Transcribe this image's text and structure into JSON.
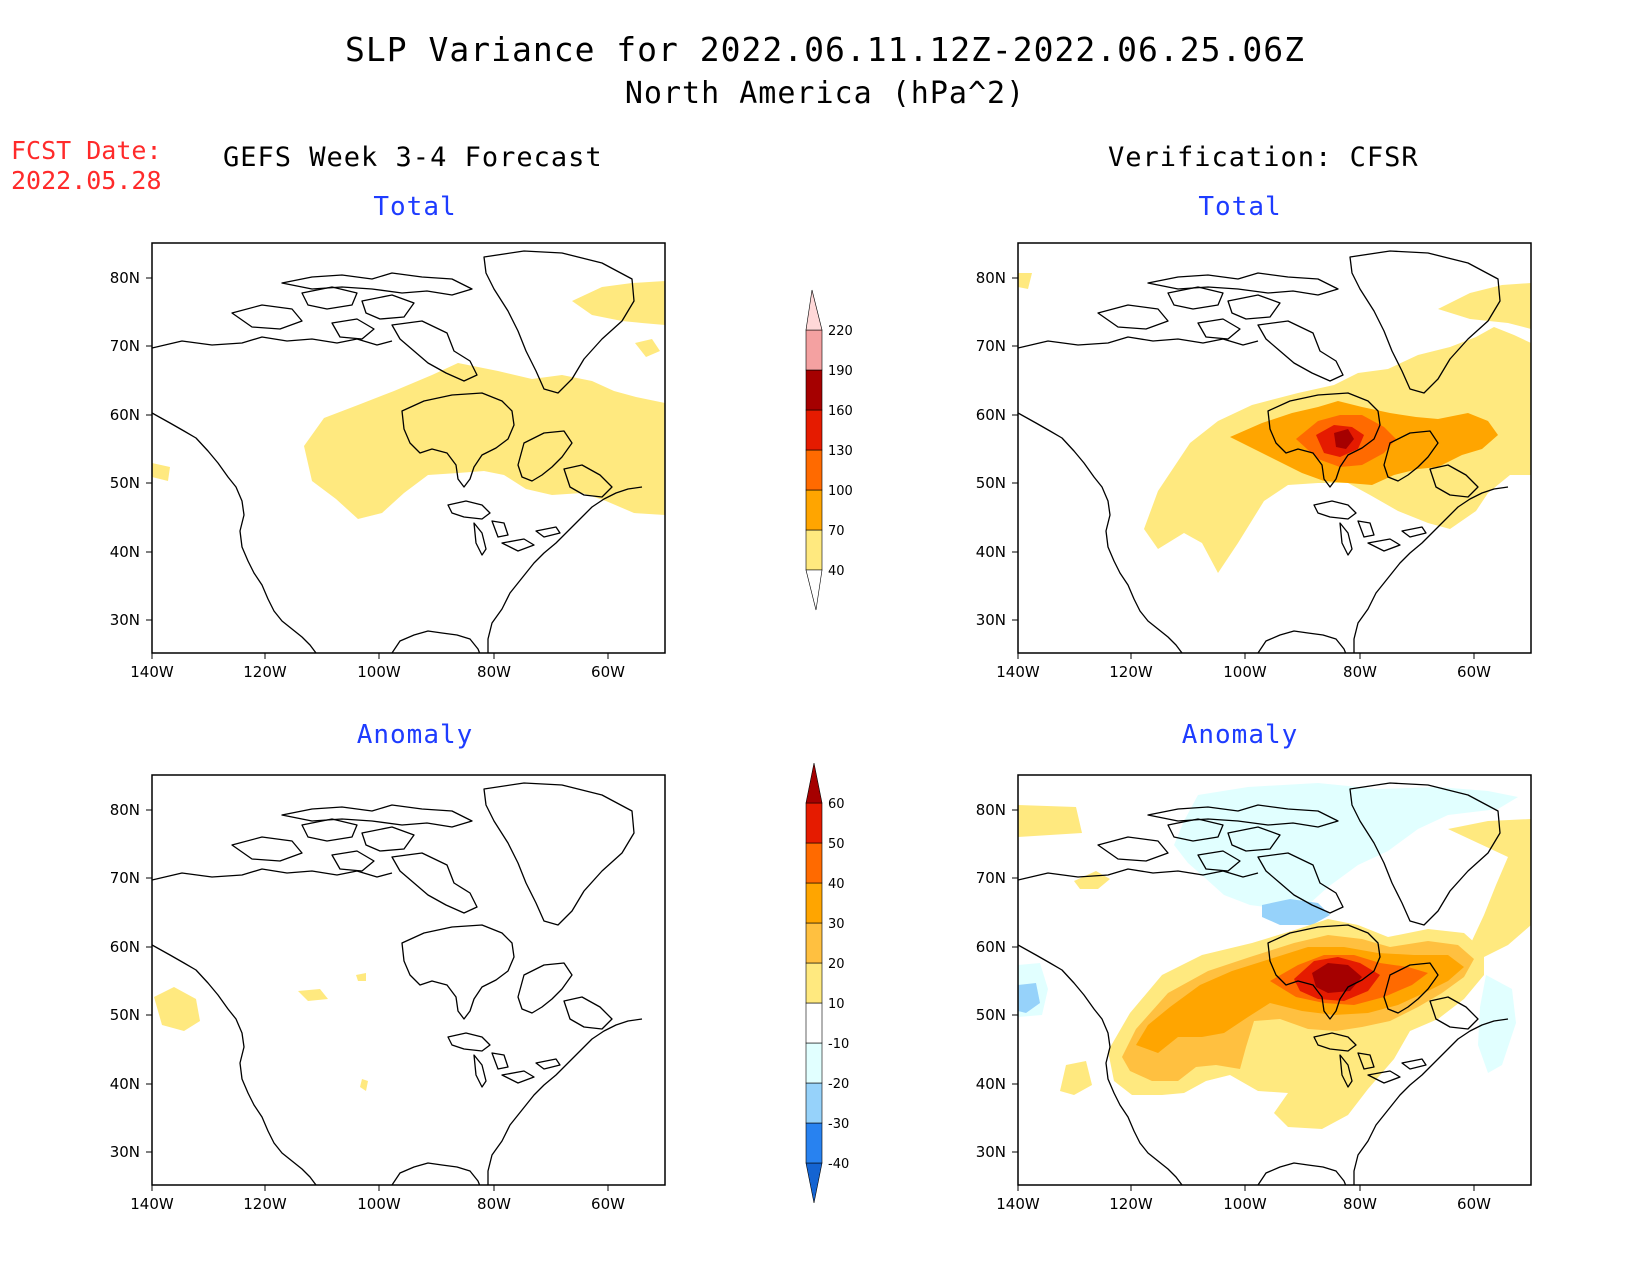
{
  "title": {
    "line1": "SLP Variance for 2022.06.11.12Z-2022.06.25.06Z",
    "line2": "North America (hPa^2)"
  },
  "forecast_date": {
    "label": "FCST Date:",
    "value": "2022.05.28"
  },
  "columns": {
    "left": "GEFS Week 3-4 Forecast",
    "right": "Verification: CFSR"
  },
  "panels": [
    {
      "id": "gefs-total",
      "subtitle": "Total"
    },
    {
      "id": "cfsr-total",
      "subtitle": "Total"
    },
    {
      "id": "gefs-anomaly",
      "subtitle": "Anomaly"
    },
    {
      "id": "cfsr-anomaly",
      "subtitle": "Anomaly"
    }
  ],
  "axes": {
    "lat_labels": [
      "80N",
      "70N",
      "60N",
      "50N",
      "40N",
      "30N"
    ],
    "lon_labels": [
      "140W",
      "120W",
      "100W",
      "80W",
      "60W"
    ]
  },
  "colorbars": {
    "total": {
      "labels": [
        "40",
        "70",
        "100",
        "130",
        "160",
        "190",
        "220"
      ],
      "colors": [
        "#ffe97f",
        "#ffa500",
        "#ff6a00",
        "#e51b00",
        "#a50000",
        "#f4a1a1",
        "#ffd8d8"
      ]
    },
    "anomaly": {
      "labels": [
        "-40",
        "-30",
        "-20",
        "-10",
        "10",
        "20",
        "30",
        "40",
        "50",
        "60"
      ],
      "colors": [
        "#1464d2",
        "#2882f0",
        "#96d2fa",
        "#e1ffff",
        "#ffffff",
        "#ffe97f",
        "#ffc040",
        "#ffa500",
        "#ff6a00",
        "#e51b00",
        "#a50000"
      ]
    }
  }
}
